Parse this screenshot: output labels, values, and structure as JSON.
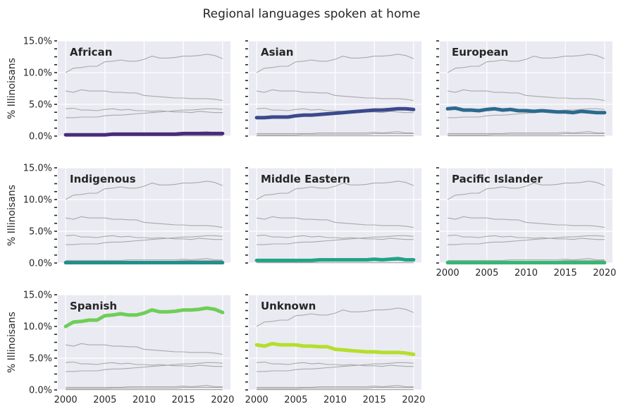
{
  "figure": {
    "title": "Regional languages spoken at home"
  },
  "chart_data": {
    "type": "line",
    "title": "Regional languages spoken at home",
    "ylabel": "% Illinoisans",
    "xlabel": "",
    "x": [
      2000,
      2001,
      2002,
      2003,
      2004,
      2005,
      2006,
      2007,
      2008,
      2009,
      2010,
      2011,
      2012,
      2013,
      2014,
      2015,
      2016,
      2017,
      2018,
      2019,
      2020
    ],
    "xticks": [
      "2000",
      "2005",
      "2010",
      "2015",
      "2020"
    ],
    "yticks": [
      "0.0%",
      "5.0%",
      "10.0%",
      "15.0%"
    ],
    "ylim": [
      0,
      15
    ],
    "grid": true,
    "layout": "small-multiples 3x3, last cell empty",
    "series": [
      {
        "name": "African",
        "color": "#472c7a",
        "values": [
          0.2,
          0.2,
          0.2,
          0.2,
          0.2,
          0.2,
          0.3,
          0.3,
          0.3,
          0.3,
          0.3,
          0.3,
          0.3,
          0.3,
          0.3,
          0.4,
          0.4,
          0.4,
          0.4,
          0.4,
          0.4
        ]
      },
      {
        "name": "Asian",
        "color": "#3b4a8c",
        "values": [
          2.9,
          2.9,
          3.0,
          3.0,
          3.0,
          3.2,
          3.3,
          3.3,
          3.4,
          3.5,
          3.6,
          3.7,
          3.8,
          3.9,
          4.0,
          4.1,
          4.1,
          4.2,
          4.3,
          4.3,
          4.2
        ]
      },
      {
        "name": "European",
        "color": "#2c6a8e",
        "values": [
          4.3,
          4.4,
          4.1,
          4.1,
          4.0,
          4.2,
          4.3,
          4.1,
          4.2,
          4.0,
          4.0,
          3.9,
          4.0,
          3.9,
          3.8,
          3.8,
          3.7,
          3.9,
          3.8,
          3.7,
          3.7
        ]
      },
      {
        "name": "Indigenous",
        "color": "#21908d",
        "values": [
          0.05,
          0.05,
          0.05,
          0.05,
          0.05,
          0.05,
          0.05,
          0.05,
          0.05,
          0.05,
          0.05,
          0.05,
          0.05,
          0.05,
          0.05,
          0.05,
          0.05,
          0.05,
          0.05,
          0.05,
          0.05
        ]
      },
      {
        "name": "Middle Eastern",
        "color": "#22a385",
        "values": [
          0.4,
          0.4,
          0.4,
          0.4,
          0.4,
          0.4,
          0.4,
          0.4,
          0.5,
          0.5,
          0.5,
          0.5,
          0.5,
          0.5,
          0.5,
          0.6,
          0.5,
          0.6,
          0.7,
          0.5,
          0.5
        ]
      },
      {
        "name": "Pacific Islander",
        "color": "#38b773",
        "values": [
          0.05,
          0.05,
          0.05,
          0.05,
          0.05,
          0.05,
          0.05,
          0.05,
          0.05,
          0.05,
          0.05,
          0.05,
          0.05,
          0.05,
          0.05,
          0.05,
          0.05,
          0.05,
          0.05,
          0.05,
          0.05
        ]
      },
      {
        "name": "Spanish",
        "color": "#6ece58",
        "values": [
          10.0,
          10.7,
          10.8,
          11.0,
          11.0,
          11.7,
          11.8,
          12.0,
          11.8,
          11.8,
          12.1,
          12.6,
          12.3,
          12.3,
          12.4,
          12.6,
          12.6,
          12.7,
          12.9,
          12.7,
          12.2
        ]
      },
      {
        "name": "Unknown",
        "color": "#b5de2b",
        "values": [
          7.1,
          6.9,
          7.3,
          7.1,
          7.1,
          7.1,
          6.9,
          6.9,
          6.8,
          6.8,
          6.4,
          6.3,
          6.2,
          6.1,
          6.0,
          6.0,
          5.9,
          5.9,
          5.9,
          5.8,
          5.6
        ]
      }
    ]
  }
}
